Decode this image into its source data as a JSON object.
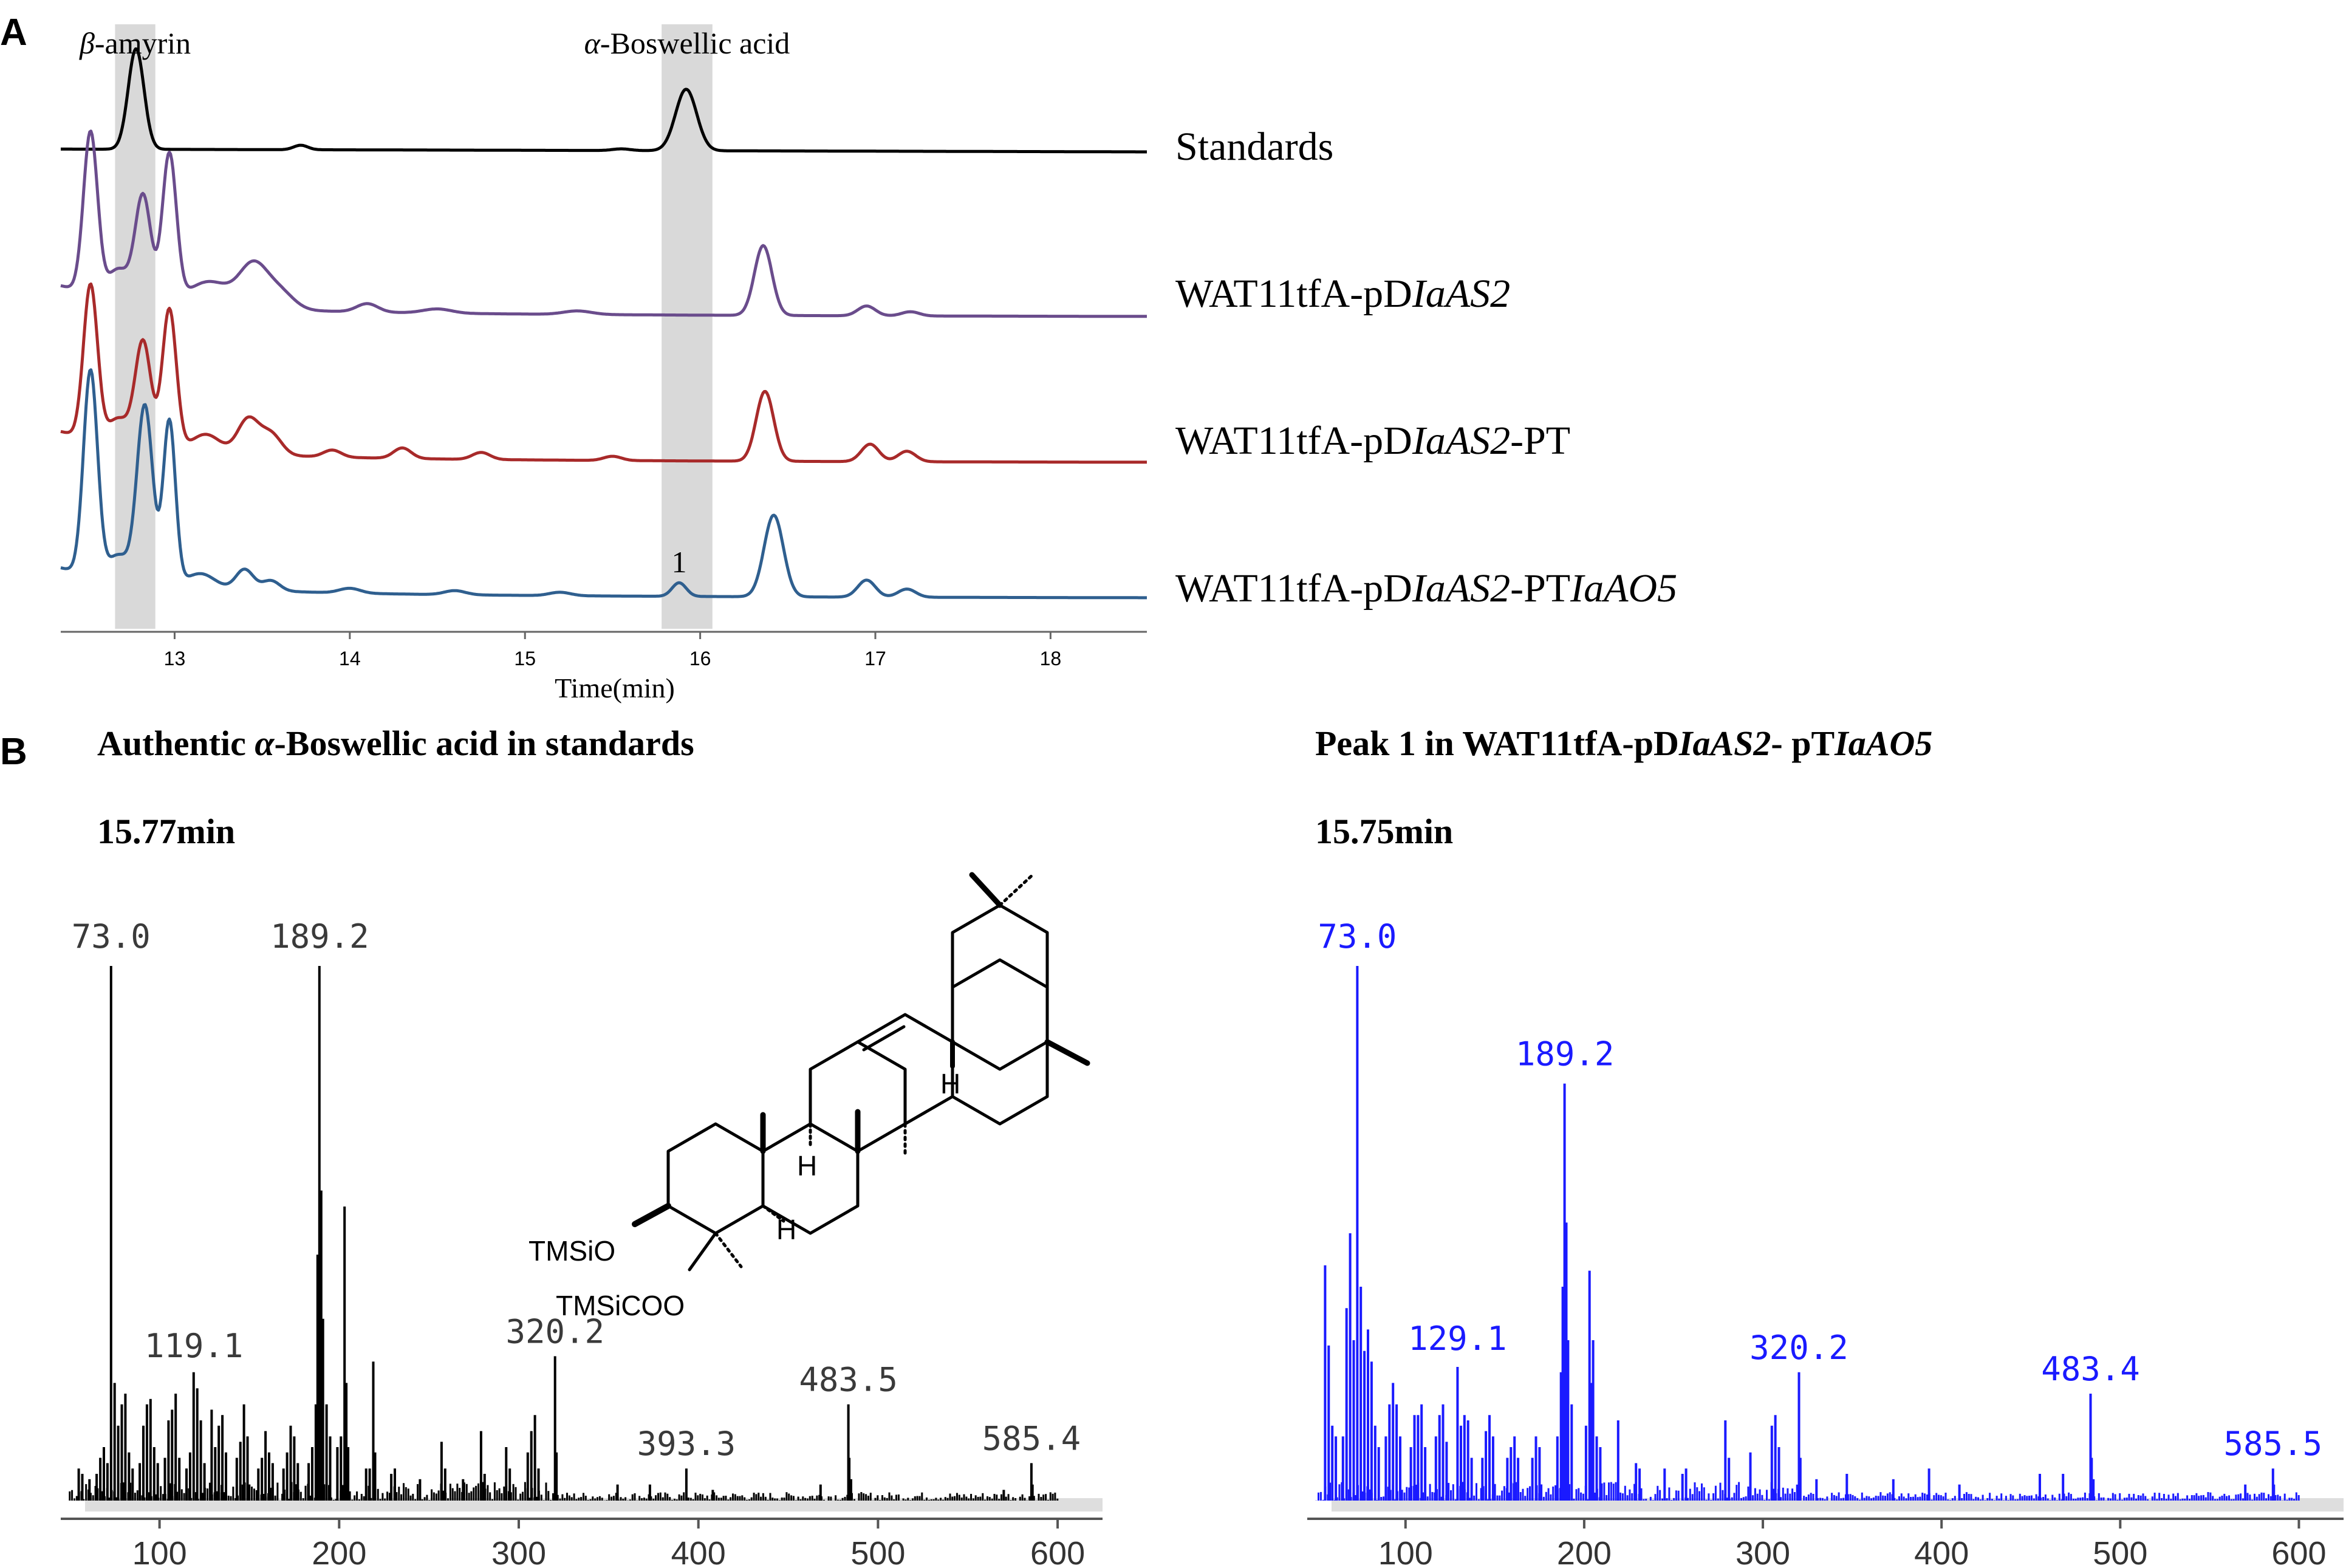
{
  "panels": {
    "a_letter": "A",
    "b_letter": "B"
  },
  "chart_data": [
    {
      "type": "line",
      "panel": "A",
      "xlabel": "Time(min)",
      "xlim": [
        12.35,
        18.55
      ],
      "x_ticks": [
        13,
        14,
        15,
        16,
        17,
        18
      ],
      "highlight_bands": [
        {
          "name": "β-amyrin",
          "x_range": [
            12.66,
            12.89
          ],
          "color": "#d9d9d9"
        },
        {
          "name": "α-Boswellic acid",
          "x_range": [
            15.78,
            16.07
          ],
          "color": "#d9d9d9"
        }
      ],
      "annotations": [
        {
          "text": "1",
          "x": 15.88,
          "series": "WAT11tfA-pDIaAS2-PTIaAO5"
        }
      ],
      "series": [
        {
          "name": "Standards",
          "color": "#000000",
          "label_parts": [
            {
              "text": "Standards",
              "italic": false
            }
          ],
          "baseline_start": 0.05,
          "baseline_end": 0.0,
          "peaks": [
            [
              12.78,
              1.8,
              0.045
            ],
            [
              13.72,
              0.08,
              0.04
            ],
            [
              15.55,
              0.03,
              0.05
            ],
            [
              15.92,
              1.1,
              0.06
            ]
          ]
        },
        {
          "name": "WAT11tfA-pDIaAS2",
          "color": "#6a4c8c",
          "label_parts": [
            {
              "text": "WAT11tfA-pD",
              "italic": false
            },
            {
              "text": "IaAS2",
              "italic": true
            }
          ],
          "baseline_start": 0.0,
          "baseline_end": 0.0,
          "peaks": [
            [
              12.52,
              2.3,
              0.04
            ],
            [
              12.68,
              0.4,
              0.06
            ],
            [
              12.82,
              1.5,
              0.045
            ],
            [
              12.97,
              2.1,
              0.04
            ],
            [
              13.2,
              0.35,
              0.12
            ],
            [
              13.45,
              0.6,
              0.08
            ],
            [
              13.6,
              0.25,
              0.08
            ],
            [
              14.1,
              0.12,
              0.06
            ],
            [
              14.5,
              0.06,
              0.08
            ],
            [
              15.3,
              0.05,
              0.08
            ],
            [
              16.36,
              1.0,
              0.05
            ],
            [
              16.95,
              0.14,
              0.05
            ],
            [
              17.2,
              0.06,
              0.05
            ]
          ]
        },
        {
          "name": "WAT11tfA-pDIaAS2-PT",
          "color": "#a82a2a",
          "label_parts": [
            {
              "text": "WAT11tfA-pD",
              "italic": false
            },
            {
              "text": "IaAS2",
              "italic": true
            },
            {
              "text": "-PT",
              "italic": false
            }
          ],
          "baseline_start": 0.0,
          "baseline_end": 0.0,
          "peaks": [
            [
              12.52,
              2.2,
              0.04
            ],
            [
              12.68,
              0.35,
              0.06
            ],
            [
              12.82,
              1.5,
              0.045
            ],
            [
              12.97,
              2.0,
              0.04
            ],
            [
              13.18,
              0.25,
              0.08
            ],
            [
              13.42,
              0.5,
              0.06
            ],
            [
              13.55,
              0.3,
              0.06
            ],
            [
              13.9,
              0.1,
              0.05
            ],
            [
              14.3,
              0.15,
              0.05
            ],
            [
              14.75,
              0.1,
              0.05
            ],
            [
              15.5,
              0.06,
              0.05
            ],
            [
              16.37,
              1.0,
              0.05
            ],
            [
              16.97,
              0.25,
              0.05
            ],
            [
              17.18,
              0.15,
              0.05
            ]
          ]
        },
        {
          "name": "WAT11tfA-pDIaAS2-PTIaAO5",
          "color": "#2f5f8f",
          "label_parts": [
            {
              "text": "WAT11tfA-pD",
              "italic": false
            },
            {
              "text": "IaAS2",
              "italic": true
            },
            {
              "text": "-PT",
              "italic": false
            },
            {
              "text": "IaAO5",
              "italic": true
            }
          ],
          "baseline_start": 0.0,
          "baseline_end": 0.0,
          "peaks": [
            [
              12.52,
              3.0,
              0.04
            ],
            [
              12.68,
              0.35,
              0.06
            ],
            [
              12.83,
              2.6,
              0.045
            ],
            [
              12.97,
              2.4,
              0.035
            ],
            [
              13.15,
              0.2,
              0.08
            ],
            [
              13.4,
              0.3,
              0.05
            ],
            [
              13.55,
              0.15,
              0.05
            ],
            [
              14.0,
              0.07,
              0.06
            ],
            [
              14.6,
              0.06,
              0.06
            ],
            [
              15.2,
              0.05,
              0.06
            ],
            [
              15.88,
              0.2,
              0.04
            ],
            [
              16.42,
              1.2,
              0.055
            ],
            [
              16.95,
              0.25,
              0.05
            ],
            [
              17.18,
              0.12,
              0.05
            ]
          ]
        }
      ]
    },
    {
      "type": "bar",
      "panel": "B-left",
      "title_parts": [
        {
          "text": "Authentic ",
          "italic": false
        },
        {
          "text": "α",
          "italic": true
        },
        {
          "text": "-Boswellic acid in standards",
          "italic": false
        }
      ],
      "time_label": "15.77min",
      "color": "#000000",
      "xlim": [
        50,
        620
      ],
      "x_ticks": [
        100,
        200,
        300,
        400,
        500,
        600
      ],
      "ylim": [
        0,
        100
      ],
      "labels": [
        {
          "text": "73.0",
          "mz": 73
        },
        {
          "text": "189.2",
          "mz": 189.2
        },
        {
          "text": "119.1",
          "mz": 119.1
        },
        {
          "text": "320.2",
          "mz": 320.2
        },
        {
          "text": "393.3",
          "mz": 393.3
        },
        {
          "text": "483.5",
          "mz": 483.5
        },
        {
          "text": "585.4",
          "mz": 585.4
        }
      ],
      "peaks": [
        [
          55,
          6
        ],
        [
          57,
          5
        ],
        [
          61,
          4
        ],
        [
          65,
          5
        ],
        [
          67,
          8
        ],
        [
          69,
          10
        ],
        [
          71,
          7
        ],
        [
          73,
          100
        ],
        [
          75,
          22
        ],
        [
          77,
          14
        ],
        [
          79,
          18
        ],
        [
          81,
          20
        ],
        [
          83,
          9
        ],
        [
          85,
          6
        ],
        [
          89,
          7
        ],
        [
          91,
          14
        ],
        [
          93,
          18
        ],
        [
          95,
          19
        ],
        [
          97,
          10
        ],
        [
          99,
          7
        ],
        [
          103,
          8
        ],
        [
          105,
          15
        ],
        [
          107,
          17
        ],
        [
          109,
          20
        ],
        [
          111,
          8
        ],
        [
          115,
          6
        ],
        [
          117,
          9
        ],
        [
          119,
          24
        ],
        [
          121,
          21
        ],
        [
          123,
          15
        ],
        [
          125,
          7
        ],
        [
          129,
          17
        ],
        [
          131,
          10
        ],
        [
          133,
          14
        ],
        [
          135,
          16
        ],
        [
          137,
          9
        ],
        [
          143,
          8
        ],
        [
          145,
          11
        ],
        [
          147,
          18
        ],
        [
          149,
          12
        ],
        [
          155,
          6
        ],
        [
          157,
          8
        ],
        [
          159,
          13
        ],
        [
          161,
          9
        ],
        [
          163,
          7
        ],
        [
          169,
          6
        ],
        [
          171,
          9
        ],
        [
          173,
          14
        ],
        [
          175,
          12
        ],
        [
          177,
          7
        ],
        [
          183,
          7
        ],
        [
          185,
          10
        ],
        [
          187,
          18
        ],
        [
          188,
          46
        ],
        [
          189,
          100
        ],
        [
          190,
          58
        ],
        [
          191,
          34
        ],
        [
          193,
          18
        ],
        [
          195,
          12
        ],
        [
          199,
          10
        ],
        [
          201,
          12
        ],
        [
          203,
          55
        ],
        [
          204,
          22
        ],
        [
          205,
          10
        ],
        [
          215,
          6
        ],
        [
          217,
          6
        ],
        [
          219,
          26
        ],
        [
          220,
          9
        ],
        [
          229,
          5
        ],
        [
          231,
          6
        ],
        [
          245,
          4
        ],
        [
          257,
          11
        ],
        [
          259,
          6
        ],
        [
          269,
          4
        ],
        [
          279,
          13
        ],
        [
          281,
          5
        ],
        [
          293,
          10
        ],
        [
          295,
          6
        ],
        [
          305,
          9
        ],
        [
          307,
          13
        ],
        [
          309,
          16
        ],
        [
          311,
          6
        ],
        [
          320.2,
          27
        ],
        [
          321,
          9
        ],
        [
          355,
          3
        ],
        [
          373,
          3
        ],
        [
          393.3,
          6
        ],
        [
          408,
          2
        ],
        [
          468,
          3
        ],
        [
          483.5,
          18
        ],
        [
          484,
          8
        ],
        [
          485,
          4
        ],
        [
          570,
          2
        ],
        [
          585.4,
          7
        ],
        [
          586,
          3
        ]
      ]
    },
    {
      "type": "bar",
      "panel": "B-right",
      "title_parts": [
        {
          "text": "Peak 1 in WAT11tfA-pD",
          "italic": false
        },
        {
          "text": "IaAS2",
          "italic": true
        },
        {
          "text": "- pT",
          "italic": false
        },
        {
          "text": "IaAO5",
          "italic": true
        }
      ],
      "time_label": "15.75min",
      "color": "#1a1aff",
      "xlim": [
        50,
        620
      ],
      "x_ticks": [
        100,
        200,
        300,
        400,
        500,
        600
      ],
      "ylim": [
        0,
        100
      ],
      "labels": [
        {
          "text": "73.0",
          "mz": 73
        },
        {
          "text": "189.2",
          "mz": 189.2
        },
        {
          "text": "129.1",
          "mz": 129.1
        },
        {
          "text": "320.2",
          "mz": 320.2
        },
        {
          "text": "483.4",
          "mz": 483.4
        },
        {
          "text": "585.5",
          "mz": 585.5
        }
      ],
      "peaks": [
        [
          55,
          44
        ],
        [
          57,
          29
        ],
        [
          59,
          14
        ],
        [
          61,
          12
        ],
        [
          65,
          12
        ],
        [
          67,
          36
        ],
        [
          69,
          50
        ],
        [
          71,
          30
        ],
        [
          73,
          100
        ],
        [
          75,
          40
        ],
        [
          77,
          28
        ],
        [
          79,
          32
        ],
        [
          81,
          26
        ],
        [
          83,
          14
        ],
        [
          85,
          10
        ],
        [
          89,
          12
        ],
        [
          91,
          18
        ],
        [
          93,
          22
        ],
        [
          95,
          18
        ],
        [
          97,
          12
        ],
        [
          103,
          10
        ],
        [
          105,
          16
        ],
        [
          107,
          16
        ],
        [
          109,
          18
        ],
        [
          111,
          10
        ],
        [
          117,
          12
        ],
        [
          119,
          16
        ],
        [
          121,
          18
        ],
        [
          123,
          11
        ],
        [
          129.1,
          25
        ],
        [
          131,
          14
        ],
        [
          133,
          16
        ],
        [
          135,
          15
        ],
        [
          137,
          8
        ],
        [
          143,
          8
        ],
        [
          145,
          13
        ],
        [
          147,
          16
        ],
        [
          149,
          12
        ],
        [
          157,
          8
        ],
        [
          159,
          10
        ],
        [
          161,
          12
        ],
        [
          163,
          8
        ],
        [
          171,
          8
        ],
        [
          173,
          12
        ],
        [
          175,
          10
        ],
        [
          185,
          12
        ],
        [
          187,
          24
        ],
        [
          188,
          40
        ],
        [
          189,
          78
        ],
        [
          190,
          52
        ],
        [
          191,
          30
        ],
        [
          193,
          18
        ],
        [
          201,
          14
        ],
        [
          203,
          43
        ],
        [
          204,
          22
        ],
        [
          205,
          30
        ],
        [
          207,
          12
        ],
        [
          209,
          10
        ],
        [
          219,
          15
        ],
        [
          229,
          7
        ],
        [
          231,
          6
        ],
        [
          245,
          6
        ],
        [
          255,
          5
        ],
        [
          257,
          6
        ],
        [
          279,
          15
        ],
        [
          281,
          8
        ],
        [
          293,
          9
        ],
        [
          305,
          14
        ],
        [
          307,
          16
        ],
        [
          309,
          10
        ],
        [
          320.2,
          24
        ],
        [
          321,
          8
        ],
        [
          330,
          4
        ],
        [
          347,
          5
        ],
        [
          373,
          4
        ],
        [
          393,
          6
        ],
        [
          410,
          3
        ],
        [
          455,
          5
        ],
        [
          468,
          5
        ],
        [
          483.4,
          20
        ],
        [
          484,
          8
        ],
        [
          485,
          4
        ],
        [
          570,
          3
        ],
        [
          585.5,
          6
        ],
        [
          586,
          3
        ]
      ]
    }
  ],
  "structure": {
    "tmsio_label": "TMSiO",
    "tmsicoo_label": "TMSiCOO",
    "h_labels": [
      "H",
      "H",
      "H"
    ]
  }
}
